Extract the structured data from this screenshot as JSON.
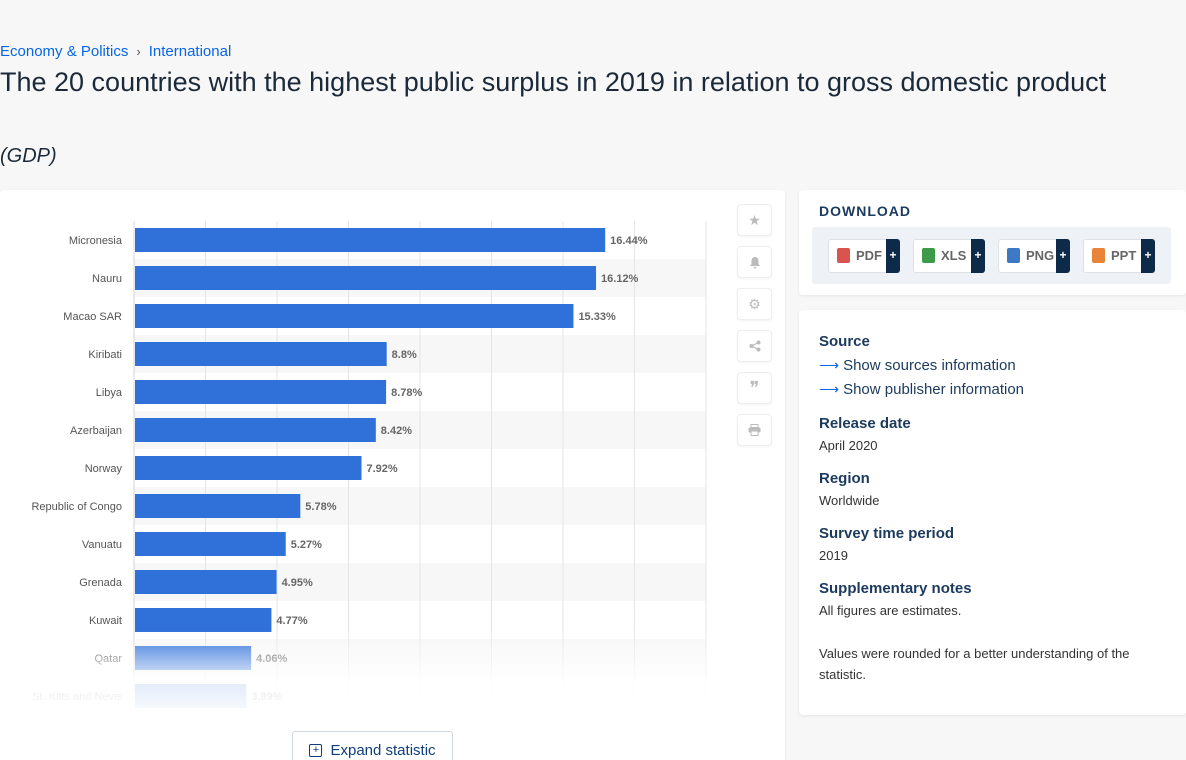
{
  "breadcrumb": {
    "item1": "Economy & Politics",
    "sep": "›",
    "item2": "International"
  },
  "title": "The 20 countries with the highest public surplus in 2019 in relation to gross domestic product",
  "subtitle": "(GDP)",
  "chart_data": {
    "type": "bar",
    "orientation": "horizontal",
    "categories": [
      "Micronesia",
      "Nauru",
      "Macao SAR",
      "Kiribati",
      "Libya",
      "Azerbaijan",
      "Norway",
      "Republic of Congo",
      "Vanuatu",
      "Grenada",
      "Kuwait",
      "Qatar",
      "St. Kitts and Nevis"
    ],
    "values": [
      16.44,
      16.12,
      15.33,
      8.8,
      8.78,
      8.42,
      7.92,
      5.78,
      5.27,
      4.95,
      4.77,
      4.06,
      3.89
    ],
    "value_labels": [
      "16.44%",
      "16.12%",
      "15.33%",
      "8.8%",
      "8.78%",
      "8.42%",
      "7.92%",
      "5.78%",
      "5.27%",
      "4.95%",
      "4.77%",
      "4.06%",
      "3.89%"
    ],
    "xlim": [
      0,
      20
    ],
    "grid": true,
    "bar_color": "#3071d9"
  },
  "toolbar": [
    "star-icon",
    "bell-icon",
    "gear-icon",
    "share-icon",
    "quote-icon",
    "print-icon"
  ],
  "expand_label": "Expand statistic",
  "download": {
    "title": "DOWNLOAD",
    "buttons": [
      {
        "label": "PDF",
        "color": "#d9534f"
      },
      {
        "label": "XLS",
        "color": "#3c9a48"
      },
      {
        "label": "PNG",
        "color": "#3d78c4"
      },
      {
        "label": "PPT",
        "color": "#e8843a"
      }
    ],
    "plus": "+"
  },
  "info": {
    "source_label": "Source",
    "show_sources": "Show sources information",
    "show_publisher": "Show publisher information",
    "release_label": "Release date",
    "release_value": "April 2020",
    "region_label": "Region",
    "region_value": "Worldwide",
    "survey_label": "Survey time period",
    "survey_value": "2019",
    "notes_label": "Supplementary notes",
    "notes_1": "All figures are estimates.",
    "notes_2": "Values were rounded for a better understanding of the statistic."
  }
}
